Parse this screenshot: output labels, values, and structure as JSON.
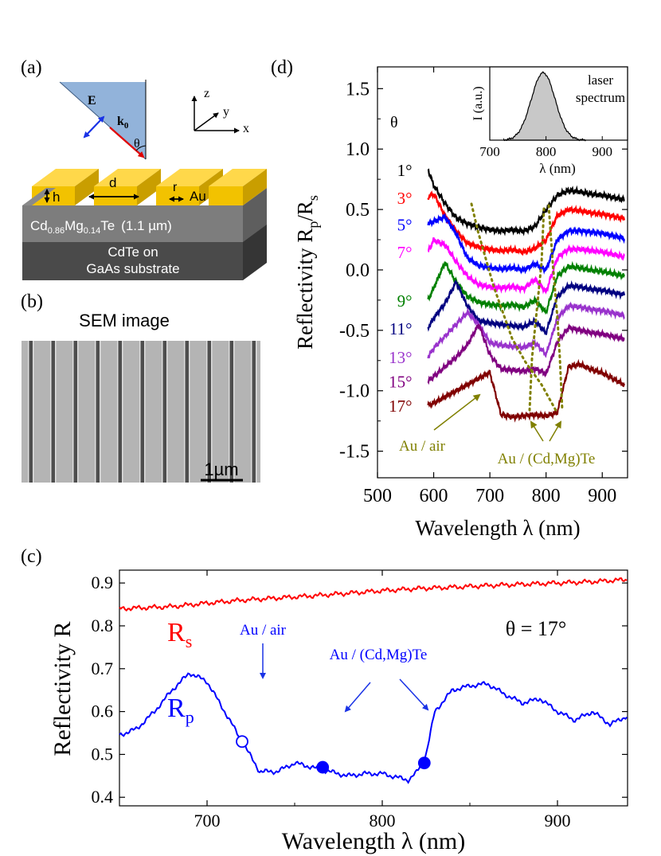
{
  "panel_a": {
    "label": "(a)",
    "e_field": "E",
    "wavevector": "k",
    "wavevector_sub": "0",
    "angle": "θ",
    "axis_z": "z",
    "axis_y": "y",
    "axis_x": "x",
    "dim_d": "d",
    "dim_h": "h",
    "dim_r": "r",
    "metal": "Au",
    "layer_base": "Cd",
    "layer_sub1": "0.86",
    "layer_mg": "Mg",
    "layer_sub2": "0.14",
    "layer_te": "Te",
    "layer_thickness": "(1.1 µm)",
    "substrate_line1": "CdTe on",
    "substrate_line2": "GaAs substrate",
    "colors": {
      "gold": "#f2c200",
      "gold_top": "#ffd84a",
      "layer": "#7d7d7d",
      "substrate": "#4a4a4a",
      "prism": "#7fa6d4"
    }
  },
  "panel_b": {
    "label": "(b)",
    "title": "SEM image",
    "scalebar": "1µm"
  },
  "panel_c": {
    "label": "(c)",
    "annotations": {
      "theta": "θ = 17°",
      "rs_main": "R",
      "rs_sub": "s",
      "rp_main": "R",
      "rp_sub": "p",
      "au_air": "Au / air",
      "au_cdmgte": "Au / (Cd,Mg)Te"
    },
    "markers": [
      {
        "wavelength": 720,
        "reflectivity": 0.53,
        "filled": false
      },
      {
        "wavelength": 766,
        "reflectivity": 0.47,
        "filled": true
      },
      {
        "wavelength": 824,
        "reflectivity": 0.48,
        "filled": true
      }
    ]
  },
  "panel_d": {
    "label": "(d)",
    "theta_header": "θ",
    "annotations": {
      "au_air": "Au / air",
      "au_cdmgte": "Au / (Cd,Mg)Te"
    },
    "inset": {
      "ylabel": "I (a.u.)",
      "xlabel": "λ (nm)",
      "title": "laser\nspectrum",
      "title_line1": "laser",
      "title_line2": "spectrum",
      "xticks": [
        "700",
        "800",
        "900"
      ],
      "xlim": [
        700,
        945
      ],
      "peak_nm": 795,
      "fill_color": "#c8c8c8"
    }
  },
  "chart_data": [
    {
      "id": "panel_c",
      "type": "line",
      "title": "",
      "xlabel": "Wavelength λ (nm)",
      "ylabel": "Reflectivity R",
      "xlim": [
        650,
        940
      ],
      "ylim": [
        0.38,
        0.93
      ],
      "xticks": [
        700,
        800,
        900
      ],
      "yticks": [
        0.4,
        0.5,
        0.6,
        0.7,
        0.8,
        0.9
      ],
      "xtick_labels": [
        "700",
        "800",
        "900"
      ],
      "ytick_labels": [
        "0.4",
        "0.5",
        "0.6",
        "0.7",
        "0.8",
        "0.9"
      ],
      "series": [
        {
          "name": "R_s",
          "color": "#ff0000",
          "x": [
            650,
            680,
            700,
            720,
            740,
            760,
            780,
            800,
            820,
            840,
            860,
            880,
            900,
            920,
            940
          ],
          "y": [
            0.84,
            0.845,
            0.853,
            0.86,
            0.865,
            0.87,
            0.876,
            0.882,
            0.887,
            0.89,
            0.894,
            0.897,
            0.9,
            0.903,
            0.908
          ]
        },
        {
          "name": "R_p",
          "color": "#0000ff",
          "x": [
            650,
            660,
            670,
            680,
            690,
            700,
            710,
            720,
            730,
            740,
            750,
            760,
            770,
            780,
            790,
            800,
            810,
            815,
            820,
            825,
            830,
            840,
            850,
            860,
            870,
            880,
            890,
            900,
            910,
            920,
            930,
            940
          ],
          "y": [
            0.545,
            0.56,
            0.6,
            0.65,
            0.69,
            0.67,
            0.6,
            0.53,
            0.46,
            0.46,
            0.48,
            0.47,
            0.46,
            0.45,
            0.455,
            0.455,
            0.445,
            0.44,
            0.46,
            0.5,
            0.6,
            0.65,
            0.66,
            0.665,
            0.64,
            0.62,
            0.63,
            0.6,
            0.58,
            0.6,
            0.57,
            0.59
          ]
        }
      ]
    },
    {
      "id": "panel_d",
      "type": "line",
      "title": "",
      "xlabel": "Wavelength λ (nm)",
      "ylabel": "Reflectivity R",
      "ylabel_sub1": "p",
      "ylabel_sep": "/R",
      "ylabel_sub2": "s",
      "xlim": [
        500,
        945
      ],
      "ylim": [
        -1.72,
        1.68
      ],
      "xticks": [
        500,
        600,
        700,
        800,
        900
      ],
      "yticks": [
        -1.5,
        -1.0,
        -0.5,
        0.0,
        0.5,
        1.0,
        1.5
      ],
      "xtick_labels": [
        "500",
        "600",
        "700",
        "800",
        "900"
      ],
      "ytick_labels": [
        "-1.5",
        "-1.0",
        "-0.5",
        "0.0",
        "0.5",
        "1.0",
        "1.5"
      ],
      "x": [
        590,
        600,
        620,
        640,
        660,
        680,
        700,
        720,
        740,
        760,
        780,
        800,
        820,
        840,
        860,
        880,
        900,
        920,
        940
      ],
      "series": [
        {
          "name": "1°",
          "color": "#000000",
          "y": [
            0.83,
            0.7,
            0.55,
            0.43,
            0.38,
            0.35,
            0.33,
            0.32,
            0.33,
            0.32,
            0.36,
            0.5,
            0.62,
            0.66,
            0.65,
            0.63,
            0.62,
            0.6,
            0.58
          ]
        },
        {
          "name": "3°",
          "color": "#ff0000",
          "y": [
            0.6,
            0.63,
            0.45,
            0.32,
            0.22,
            0.19,
            0.17,
            0.16,
            0.17,
            0.15,
            0.18,
            0.25,
            0.45,
            0.5,
            0.49,
            0.47,
            0.46,
            0.44,
            0.42
          ]
        },
        {
          "name": "5°",
          "color": "#0000ff",
          "y": [
            0.38,
            0.4,
            0.44,
            0.3,
            0.1,
            0.04,
            0.02,
            0.01,
            0.02,
            0.0,
            0.05,
            0.0,
            0.25,
            0.32,
            0.32,
            0.31,
            0.3,
            0.28,
            0.26
          ]
        },
        {
          "name": "7°",
          "color": "#ff00ff",
          "y": [
            0.15,
            0.25,
            0.21,
            0.07,
            -0.05,
            -0.12,
            -0.14,
            -0.15,
            -0.14,
            -0.16,
            -0.08,
            -0.18,
            0.1,
            0.17,
            0.17,
            0.16,
            0.15,
            0.13,
            0.11
          ]
        },
        {
          "name": "9°",
          "color": "#008000",
          "y": [
            -0.25,
            -0.15,
            0.06,
            -0.1,
            -0.22,
            -0.27,
            -0.29,
            -0.3,
            -0.29,
            -0.31,
            -0.25,
            -0.35,
            -0.05,
            0.03,
            0.02,
            0.0,
            -0.01,
            -0.03,
            -0.05
          ]
        },
        {
          "name": "11°",
          "color": "#000080",
          "y": [
            -0.48,
            -0.4,
            -0.28,
            -0.1,
            -0.3,
            -0.42,
            -0.44,
            -0.45,
            -0.46,
            -0.47,
            -0.42,
            -0.52,
            -0.22,
            -0.13,
            -0.14,
            -0.16,
            -0.17,
            -0.19,
            -0.21
          ]
        },
        {
          "name": "13°",
          "color": "#9933cc",
          "y": [
            -0.72,
            -0.65,
            -0.55,
            -0.45,
            -0.35,
            -0.45,
            -0.6,
            -0.62,
            -0.63,
            -0.64,
            -0.6,
            -0.7,
            -0.4,
            -0.3,
            -0.31,
            -0.33,
            -0.34,
            -0.36,
            -0.38
          ]
        },
        {
          "name": "15°",
          "color": "#800080",
          "y": [
            -0.92,
            -0.88,
            -0.8,
            -0.72,
            -0.62,
            -0.45,
            -0.7,
            -0.82,
            -0.83,
            -0.84,
            -0.82,
            -0.86,
            -0.6,
            -0.48,
            -0.5,
            -0.52,
            -0.53,
            -0.55,
            -0.57
          ]
        },
        {
          "name": "17°",
          "color": "#800000",
          "y": [
            -1.12,
            -1.1,
            -1.05,
            -1.0,
            -0.95,
            -0.9,
            -0.85,
            -1.2,
            -1.22,
            -1.21,
            -1.2,
            -1.21,
            -1.18,
            -0.8,
            -0.78,
            -0.82,
            -0.85,
            -0.9,
            -0.95
          ]
        }
      ]
    }
  ]
}
